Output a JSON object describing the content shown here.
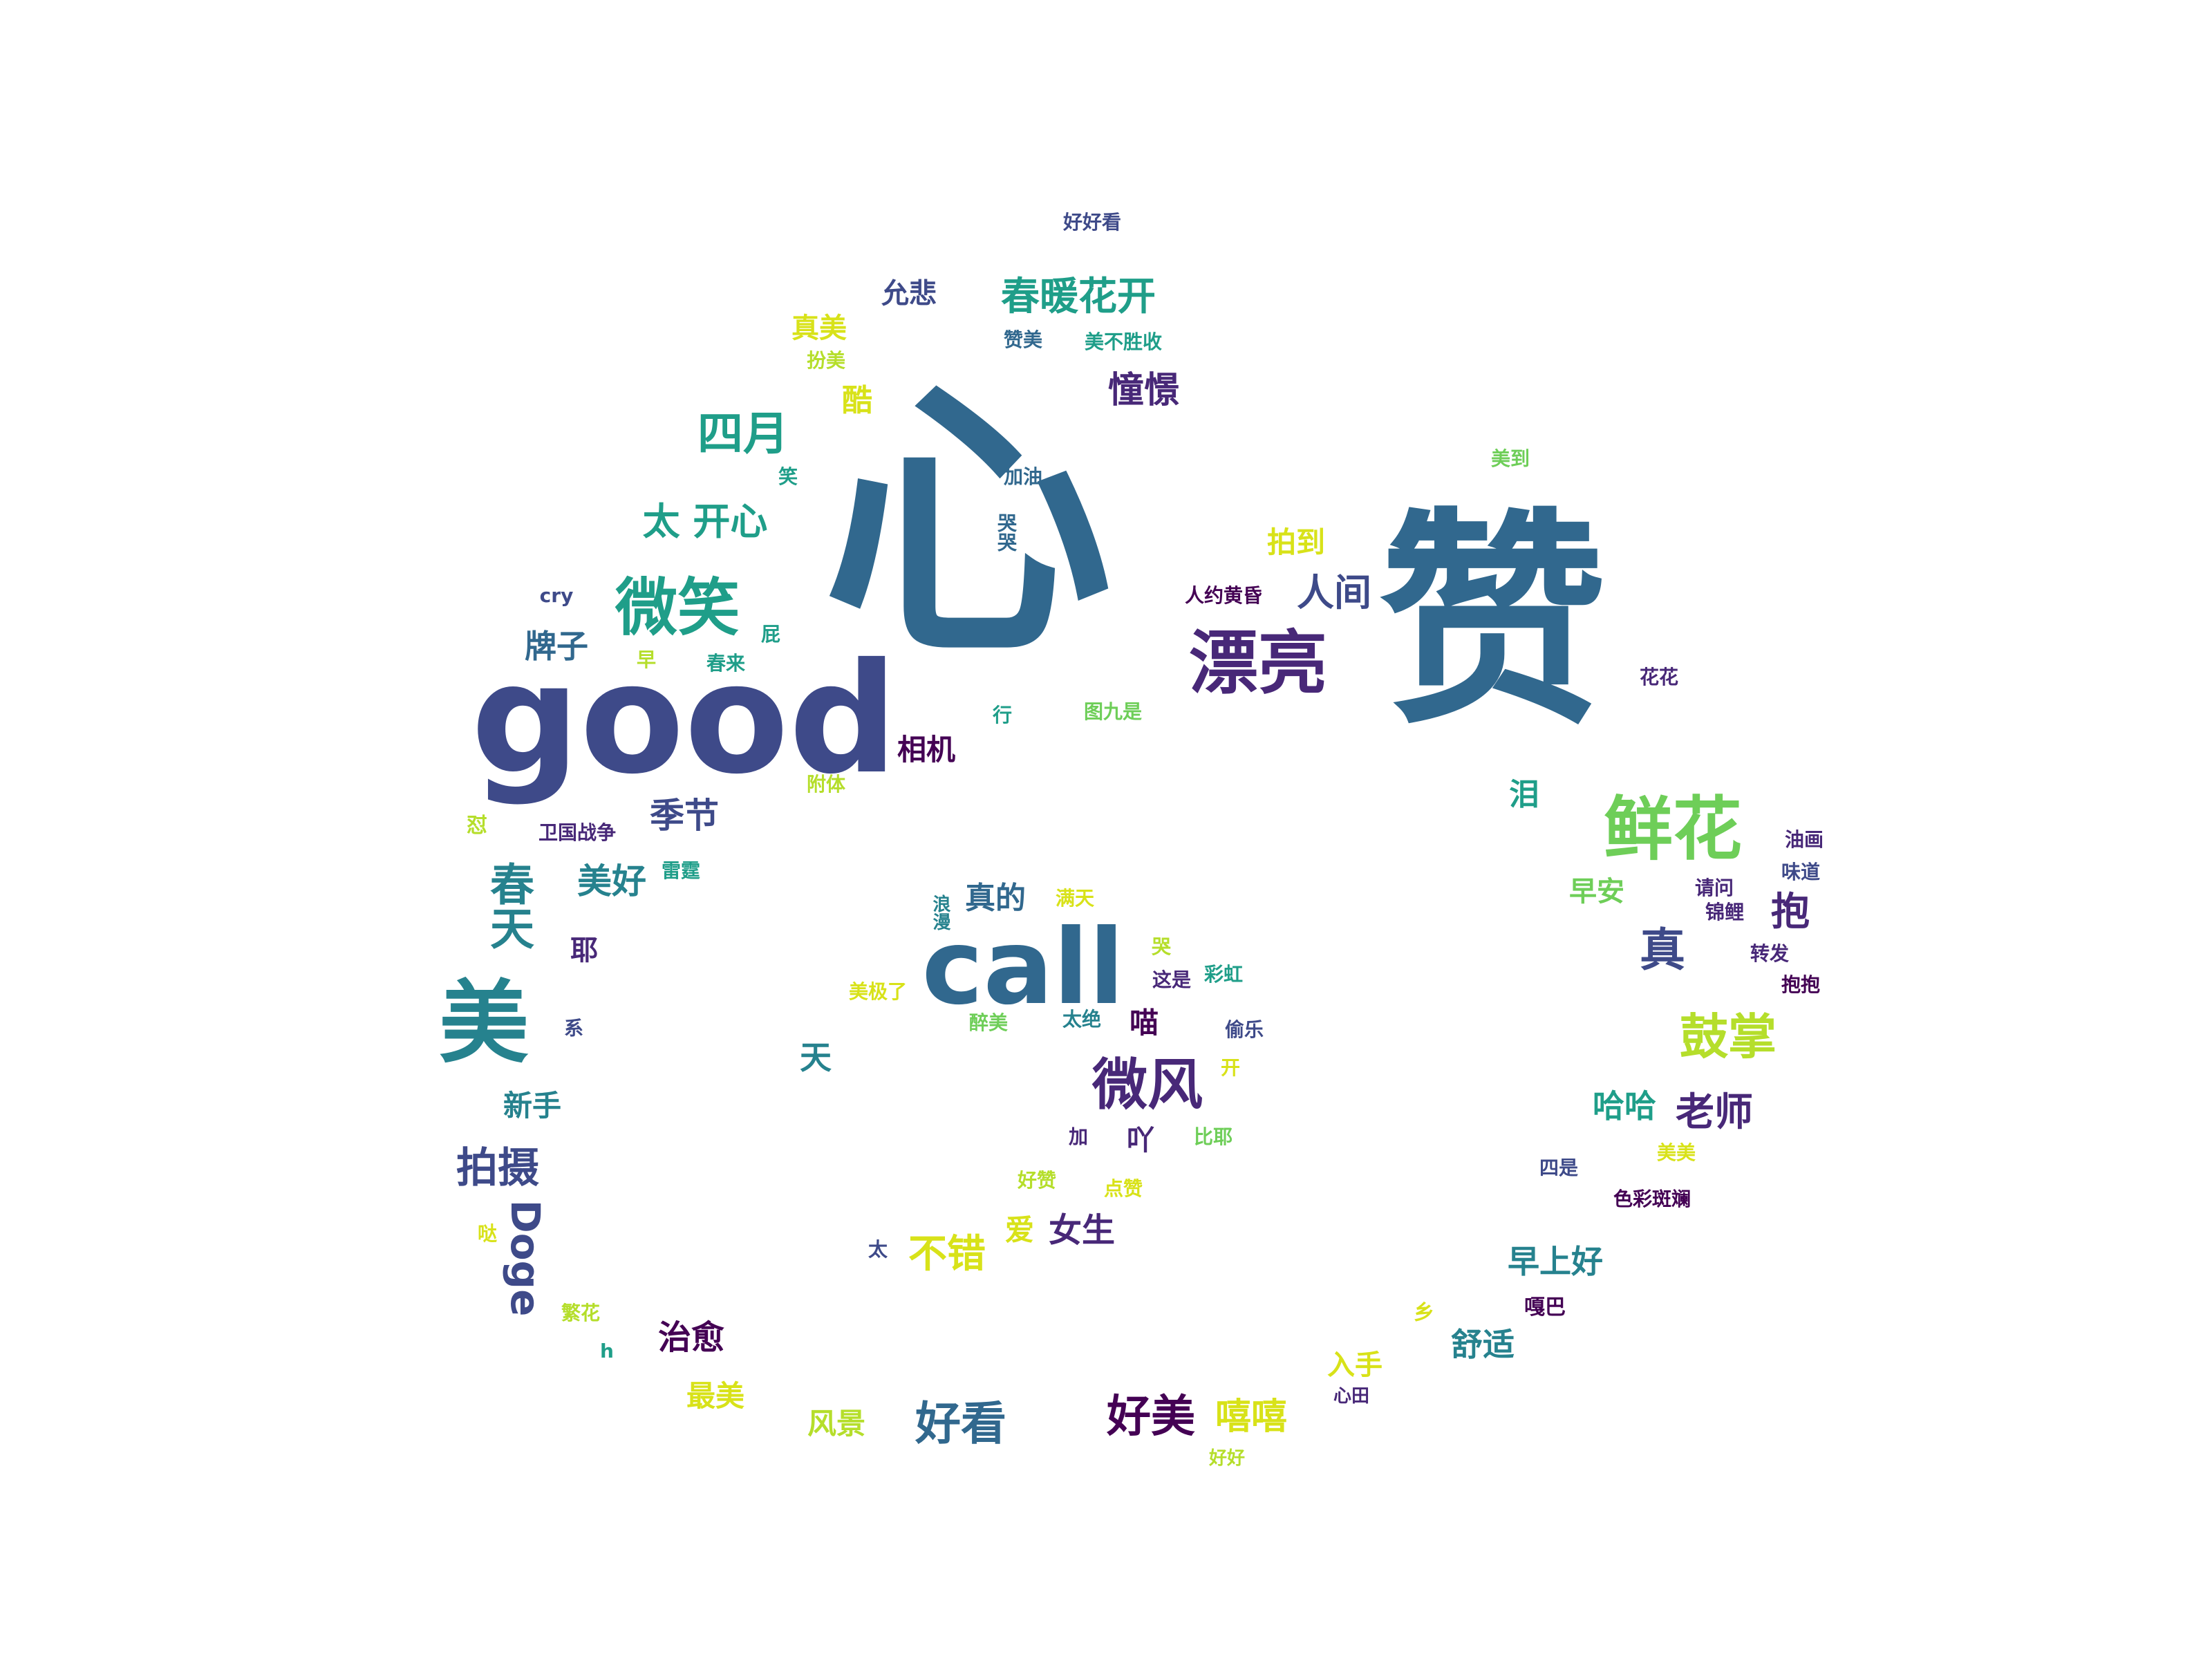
{
  "colors": {
    "dark_purple": "#440154",
    "purple": "#482878",
    "indigo": "#3e4a89",
    "blue": "#31688e",
    "teal": "#26828e",
    "sea": "#1f9e89",
    "green": "#35b779",
    "lime": "#6ece58",
    "yellow_green": "#b5de2b",
    "yellow": "#d8e219"
  },
  "words": [
    {
      "text": "心"
    },
    {
      "text": "赞"
    },
    {
      "text": "good"
    },
    {
      "text": "call"
    },
    {
      "text": "漂亮"
    },
    {
      "text": "鲜花"
    },
    {
      "text": "美"
    },
    {
      "text": "微笑"
    },
    {
      "text": "微风"
    },
    {
      "text": "春暖花开"
    },
    {
      "text": "四月"
    },
    {
      "text": "太 开心"
    },
    {
      "text": "好看"
    },
    {
      "text": "好美"
    },
    {
      "text": "鼓掌"
    },
    {
      "text": "拍摄"
    },
    {
      "text": "春天"
    },
    {
      "text": "Doge"
    },
    {
      "text": "不错"
    },
    {
      "text": "真"
    },
    {
      "text": "老师"
    },
    {
      "text": "人间"
    },
    {
      "text": "憧憬"
    },
    {
      "text": "嘻嘻"
    },
    {
      "text": "治愈"
    },
    {
      "text": "季节"
    },
    {
      "text": "美好"
    },
    {
      "text": "女生"
    },
    {
      "text": "牌子"
    },
    {
      "text": "早上好"
    },
    {
      "text": "舒适"
    },
    {
      "text": "真的"
    },
    {
      "text": "相机"
    },
    {
      "text": "拍到"
    },
    {
      "text": "允悲"
    },
    {
      "text": "真美"
    },
    {
      "text": "酷"
    },
    {
      "text": "风景"
    },
    {
      "text": "最美"
    },
    {
      "text": "新手"
    },
    {
      "text": "早安"
    },
    {
      "text": "入手"
    },
    {
      "text": "天"
    },
    {
      "text": "喵"
    },
    {
      "text": "吖"
    },
    {
      "text": "爱"
    },
    {
      "text": "耶"
    },
    {
      "text": "泪"
    },
    {
      "text": "抱"
    },
    {
      "text": "好好看"
    },
    {
      "text": "赞美"
    },
    {
      "text": "美不胜收"
    },
    {
      "text": "扮美"
    },
    {
      "text": "加油"
    },
    {
      "text": "笑"
    },
    {
      "text": "美到"
    },
    {
      "text": "哭哭"
    },
    {
      "text": "人约黄昏"
    },
    {
      "text": "cry"
    },
    {
      "text": "屁"
    },
    {
      "text": "早"
    },
    {
      "text": "春来"
    },
    {
      "text": "行"
    },
    {
      "text": "图九是"
    },
    {
      "text": "花花"
    },
    {
      "text": "附体"
    },
    {
      "text": "怼"
    },
    {
      "text": "卫国战争"
    },
    {
      "text": "雷霆"
    },
    {
      "text": "油画"
    },
    {
      "text": "请问"
    },
    {
      "text": "味道"
    },
    {
      "text": "锦鲤"
    },
    {
      "text": "转发"
    },
    {
      "text": "抱抱"
    },
    {
      "text": "满天"
    },
    {
      "text": "浪漫"
    },
    {
      "text": "美极了"
    },
    {
      "text": "哭"
    },
    {
      "text": "这是"
    },
    {
      "text": "彩虹"
    },
    {
      "text": "醉美"
    },
    {
      "text": "太绝"
    },
    {
      "text": "偷乐"
    },
    {
      "text": "系"
    },
    {
      "text": "开"
    },
    {
      "text": "加"
    },
    {
      "text": "比耶"
    },
    {
      "text": "好赞"
    },
    {
      "text": "点赞"
    },
    {
      "text": "美美"
    },
    {
      "text": "四是"
    },
    {
      "text": "色彩斑斓"
    },
    {
      "text": "哈哈"
    },
    {
      "text": "太"
    },
    {
      "text": "哒"
    },
    {
      "text": "繁花"
    },
    {
      "text": "h"
    },
    {
      "text": "乡"
    },
    {
      "text": "嘎巴"
    },
    {
      "text": "心田"
    },
    {
      "text": "好好"
    }
  ]
}
